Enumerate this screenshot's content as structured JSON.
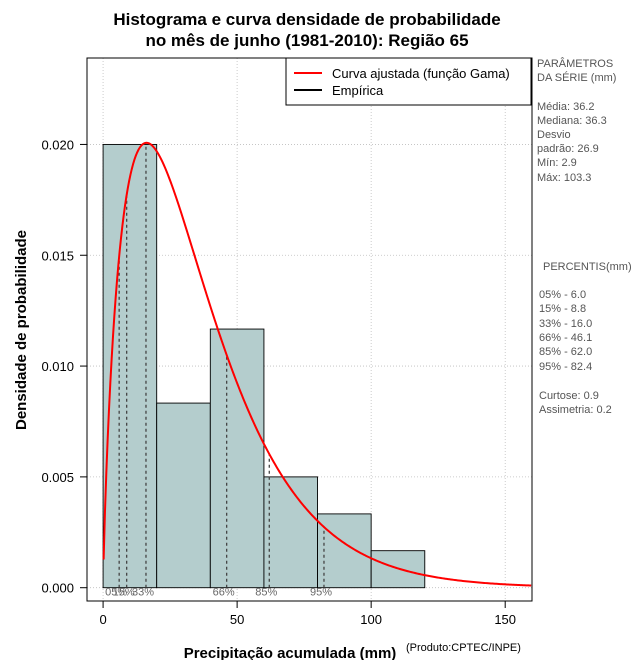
{
  "chart_data": {
    "type": "histogram",
    "title_lines": [
      "Histograma e curva densidade de probabilidade",
      "no mês de junho (1981-2010): Região 65"
    ],
    "xlabel": "Precipitação acumulada (mm)",
    "ylabel": "Densidade de probabilidade",
    "credit": "(Produto:CPTEC/INPE)",
    "xlim": [
      -6,
      160
    ],
    "ylim": [
      -0.0006,
      0.0239
    ],
    "x_ticks": [
      0,
      50,
      100,
      150
    ],
    "y_ticks": [
      0.0,
      0.005,
      0.01,
      0.015,
      0.02
    ],
    "y_tick_labels": [
      "0.000",
      "0.005",
      "0.010",
      "0.015",
      "0.020"
    ],
    "bins": [
      {
        "start": 0,
        "end": 20,
        "density": 0.02
      },
      {
        "start": 20,
        "end": 40,
        "density": 0.00833
      },
      {
        "start": 40,
        "end": 60,
        "density": 0.01167
      },
      {
        "start": 60,
        "end": 80,
        "density": 0.005
      },
      {
        "start": 80,
        "end": 100,
        "density": 0.00333
      },
      {
        "start": 100,
        "end": 120,
        "density": 0.00167
      }
    ],
    "gamma_fit": {
      "shape": 1.81,
      "rate": 0.05
    },
    "percentile_markers": [
      {
        "label": "05%",
        "value": 6.0
      },
      {
        "label": "15%",
        "value": 8.8
      },
      {
        "label": "33%",
        "value": 16.0
      },
      {
        "label": "66%",
        "value": 46.1
      },
      {
        "label": "85%",
        "value": 62.0
      },
      {
        "label": "95%",
        "value": 82.4
      }
    ],
    "legend": {
      "position": "top-right",
      "entries": [
        {
          "label": "Curva ajustada (função Gama)",
          "color": "#ff0000"
        },
        {
          "label": "Empírica",
          "color": "#000000"
        }
      ]
    },
    "grid": true,
    "colors": {
      "bar_fill": "#b4cdcd",
      "curve": "#ff0000",
      "grid": "#bebebe"
    }
  },
  "side_panel": {
    "params_title": [
      "PARÂMETROS",
      " DA SÉRIE (mm)"
    ],
    "params": [
      "Média:  36.2",
      "Mediana:  36.3",
      "Desvio",
      "padrão:  26.9",
      "Mín:  2.9",
      "Máx:  103.3"
    ],
    "percentis_title": "PERCENTIS(mm)",
    "percentis": [
      "05% -   6.0",
      "15% -   8.8",
      "33% -  16.0",
      "66% -  46.1",
      "85% -  62.0",
      "95% -  82.4"
    ],
    "stats": [
      "Curtose:  0.9",
      "Assimetria:  0.2"
    ]
  }
}
